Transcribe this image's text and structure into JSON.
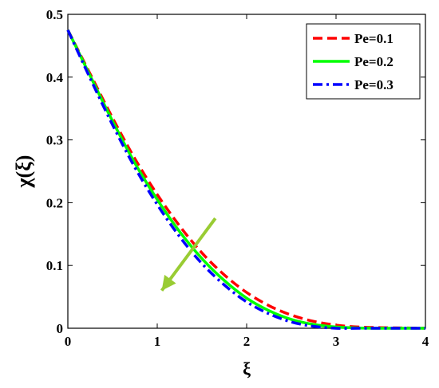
{
  "chart_data": {
    "type": "line",
    "title": "",
    "xlabel": "ξ",
    "ylabel": "χ(ξ)",
    "xlim": [
      0,
      4
    ],
    "ylim": [
      0,
      0.5
    ],
    "xticks": [
      "0",
      "1",
      "2",
      "3",
      "4"
    ],
    "yticks": [
      "0",
      "0.1",
      "0.2",
      "0.3",
      "0.4",
      "0.5"
    ],
    "grid": false,
    "legend_position": "top-right",
    "x": [
      0,
      0.25,
      0.5,
      0.75,
      1.0,
      1.25,
      1.5,
      1.75,
      2.0,
      2.25,
      2.5,
      2.75,
      3.0,
      3.25,
      3.5,
      3.75,
      4.0
    ],
    "series": [
      {
        "name": "Pe=0.1",
        "color": "#ff0000",
        "dash": "dashed",
        "values": [
          0.475,
          0.405,
          0.335,
          0.27,
          0.213,
          0.163,
          0.12,
          0.085,
          0.057,
          0.036,
          0.021,
          0.011,
          0.005,
          0.002,
          0.001,
          0.0005,
          0.0
        ]
      },
      {
        "name": "Pe=0.2",
        "color": "#00ff00",
        "dash": "solid",
        "values": [
          0.475,
          0.402,
          0.33,
          0.263,
          0.205,
          0.154,
          0.111,
          0.076,
          0.048,
          0.028,
          0.014,
          0.006,
          0.002,
          0.0005,
          0.0,
          0.0,
          0.0
        ]
      },
      {
        "name": "Pe=0.3",
        "color": "#0000ff",
        "dash": "dashdot",
        "values": [
          0.475,
          0.398,
          0.324,
          0.256,
          0.197,
          0.146,
          0.103,
          0.069,
          0.042,
          0.023,
          0.01,
          0.003,
          0.0,
          0.0,
          0.0,
          0.0,
          0.0
        ]
      }
    ],
    "annotation_arrow": {
      "color": "#99cc33",
      "from": [
        1.65,
        0.175
      ],
      "to": [
        1.05,
        0.06
      ]
    }
  }
}
